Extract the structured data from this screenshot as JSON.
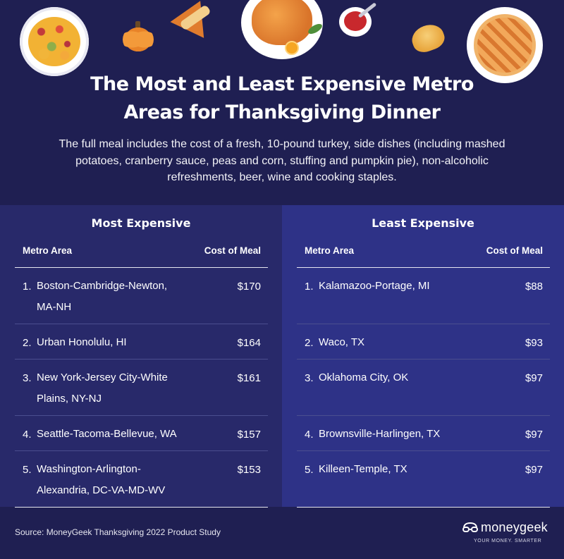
{
  "header": {
    "title_line1": "The Most and Least Expensive Metro",
    "title_line2": "Areas for Thanksgiving Dinner",
    "subtitle_line1": "The full meal includes the cost of a fresh, 10-pound turkey, side dishes (including mashed",
    "subtitle_line2": "potatoes, cranberry sauce, peas and corn, stuffing and pumpkin pie), non-alcoholic",
    "subtitle_line3": "refreshments, beer, wine and cooking staples."
  },
  "illustrations": [
    "salad-plate-icon",
    "pumpkin-icon",
    "pie-slice-icon",
    "roast-turkey-icon",
    "cranberry-sauce-icon",
    "croissant-icon",
    "lattice-pie-icon"
  ],
  "most_expensive": {
    "title": "Most Expensive",
    "col_metro": "Metro Area",
    "col_cost": "Cost of Meal",
    "rows": [
      {
        "rank": "1.",
        "name_line1": "Boston-Cambridge-Newton,",
        "name_line2": "MA-NH",
        "cost": "$170"
      },
      {
        "rank": "2.",
        "name_line1": "Urban Honolulu, HI",
        "name_line2": "",
        "cost": "$164"
      },
      {
        "rank": "3.",
        "name_line1": "New York-Jersey City-White",
        "name_line2": "Plains, NY-NJ",
        "cost": "$161"
      },
      {
        "rank": "4.",
        "name_line1": "Seattle-Tacoma-Bellevue, WA",
        "name_line2": "",
        "cost": "$157"
      },
      {
        "rank": "5.",
        "name_line1": "Washington-Arlington-",
        "name_line2": "Alexandria, DC-VA-MD-WV",
        "cost": "$153"
      }
    ]
  },
  "least_expensive": {
    "title": "Least Expensive",
    "col_metro": "Metro Area",
    "col_cost": "Cost of Meal",
    "rows": [
      {
        "rank": "1.",
        "name_line1": "Kalamazoo-Portage, MI",
        "name_line2": "",
        "cost": "$88"
      },
      {
        "rank": "2.",
        "name_line1": "Waco, TX",
        "name_line2": "",
        "cost": "$93"
      },
      {
        "rank": "3.",
        "name_line1": "Oklahoma City, OK",
        "name_line2": "",
        "cost": "$97"
      },
      {
        "rank": "4.",
        "name_line1": "Brownsville-Harlingen, TX",
        "name_line2": "",
        "cost": "$97"
      },
      {
        "rank": "5.",
        "name_line1": "Killeen-Temple, TX",
        "name_line2": "",
        "cost": "$97"
      }
    ]
  },
  "footer": {
    "source": "Source: MoneyGeek Thanksgiving 2022 Product Study",
    "brand_name": "moneygeek",
    "brand_tagline": "YOUR MONEY. SMARTER",
    "brand_icon": "moneygeek-logo-icon"
  },
  "colors": {
    "background": "#1f1f52",
    "panel_left": "#28296a",
    "panel_right": "#2e3287",
    "text": "#ffffff"
  }
}
